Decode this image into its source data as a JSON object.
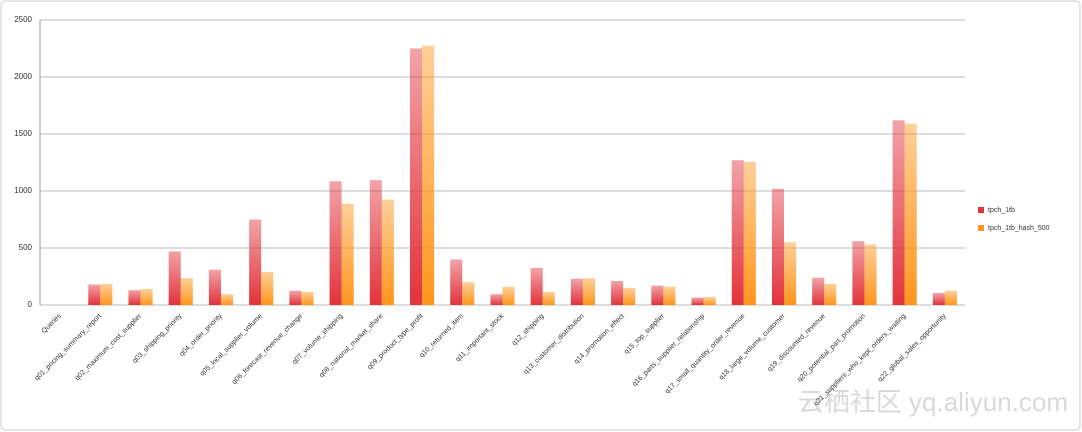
{
  "chart_data": {
    "type": "bar",
    "categories": [
      "Queries",
      "q01_pricing_summary_report",
      "q02_maximum_cost_supplier",
      "q03_shipping_priority",
      "q04_order_priority",
      "q05_local_supplier_volume",
      "q06_forecast_revenue_change",
      "q07_volume_shipping",
      "q08_national_market_share",
      "q09_product_type_profit",
      "q10_returned_item",
      "q11_important_stock",
      "q12_shipping",
      "q13_customer_distribution",
      "q14_promotion_effect",
      "q15_top_supplier",
      "q16_parts_supplier_relationship",
      "q17_small_quantity_order_revenue",
      "q18_large_volume_customer",
      "q19_discounted_revenue",
      "q20_potential_part_promotion",
      "q21_suppliers_who_kept_orders_waiting",
      "q22_global_sales_opportunity"
    ],
    "series": [
      {
        "name": "tpch_1tb",
        "color": "#e2333c",
        "values": [
          null,
          180,
          130,
          470,
          310,
          750,
          125,
          1085,
          1095,
          2250,
          400,
          95,
          325,
          230,
          210,
          170,
          65,
          1270,
          1020,
          240,
          560,
          1620,
          105
        ]
      },
      {
        "name": "tpch_1tb_hash_500",
        "color": "#ff961c",
        "values": [
          null,
          185,
          140,
          235,
          95,
          290,
          115,
          890,
          925,
          2275,
          200,
          160,
          115,
          235,
          150,
          160,
          70,
          1255,
          550,
          185,
          530,
          1590,
          125
        ]
      }
    ],
    "ylim": [
      0,
      2500
    ],
    "yticks": [
      0,
      500,
      1000,
      1500,
      2000,
      2500
    ],
    "grid": true,
    "legend": "right",
    "watermark": "云栖社区 yq.aliyun.com"
  }
}
